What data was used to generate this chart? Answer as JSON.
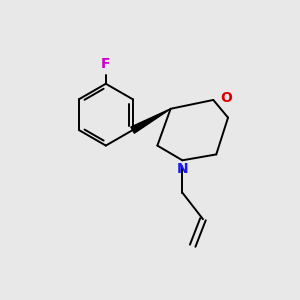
{
  "background_color": "#e8e8e8",
  "atom_colors": {
    "C": "#000000",
    "N": "#1a1aee",
    "O": "#dd0000",
    "F": "#cc00cc"
  },
  "figsize": [
    3.0,
    3.0
  ],
  "dpi": 100,
  "bond_lw": 1.4
}
